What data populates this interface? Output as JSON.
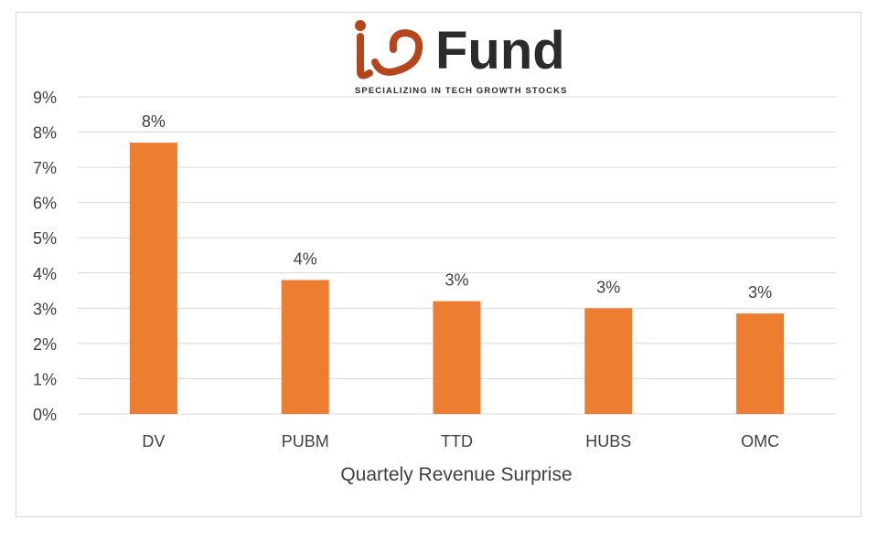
{
  "logo": {
    "wordmark": "Fund",
    "tagline": "SPECIALIZING IN TECH GROWTH STOCKS",
    "brand_color": "#b5451b",
    "text_color": "#2b2b2b"
  },
  "chart_data": {
    "type": "bar",
    "categories": [
      "DV",
      "PUBM",
      "TTD",
      "HUBS",
      "OMC"
    ],
    "values": [
      7.7,
      3.8,
      3.2,
      3.0,
      2.85
    ],
    "data_labels": [
      "8%",
      "4%",
      "3%",
      "3%",
      "3%"
    ],
    "title": "",
    "xlabel": "Quartely Revenue Surprise",
    "ylabel": "",
    "ylim": [
      0,
      9
    ],
    "y_ticks": [
      "0%",
      "1%",
      "2%",
      "3%",
      "4%",
      "5%",
      "6%",
      "7%",
      "8%",
      "9%"
    ],
    "grid": true,
    "bar_color": "#ed7d31",
    "grid_color": "#d9d9d9",
    "text_color": "#404040"
  }
}
